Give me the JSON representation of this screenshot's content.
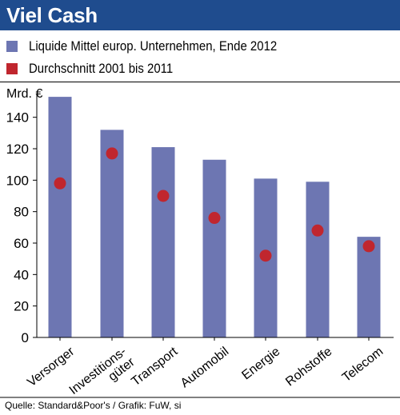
{
  "title": "Viel Cash",
  "colors": {
    "titlebar": "#1f4c8e",
    "bars": "#6d76b2",
    "dots": "#c0262e",
    "title_text": "#ffffff"
  },
  "source": "Quelle: Standard&Poor's / Grafik: FuW, si",
  "chart_data": {
    "type": "bar",
    "unit_label": "Mrd. €",
    "categories": [
      "Versorger",
      "Investitions-\ngüter",
      "Transport",
      "Automobil",
      "Energie",
      "Rohstoffe",
      "Telecom"
    ],
    "series": [
      {
        "name": "Liquide Mittel europ. Unternehmen, Ende 2012",
        "type": "bar",
        "values": [
          153,
          132,
          121,
          113,
          101,
          99,
          64
        ]
      },
      {
        "name": "Durchschnitt 2001 bis 2011",
        "type": "dot",
        "values": [
          98,
          117,
          90,
          76,
          52,
          68,
          58
        ]
      }
    ],
    "ylim": [
      0,
      160
    ],
    "yticks": [
      0,
      20,
      40,
      60,
      80,
      100,
      120,
      140
    ],
    "grid": false,
    "legend_position": "top-left"
  }
}
